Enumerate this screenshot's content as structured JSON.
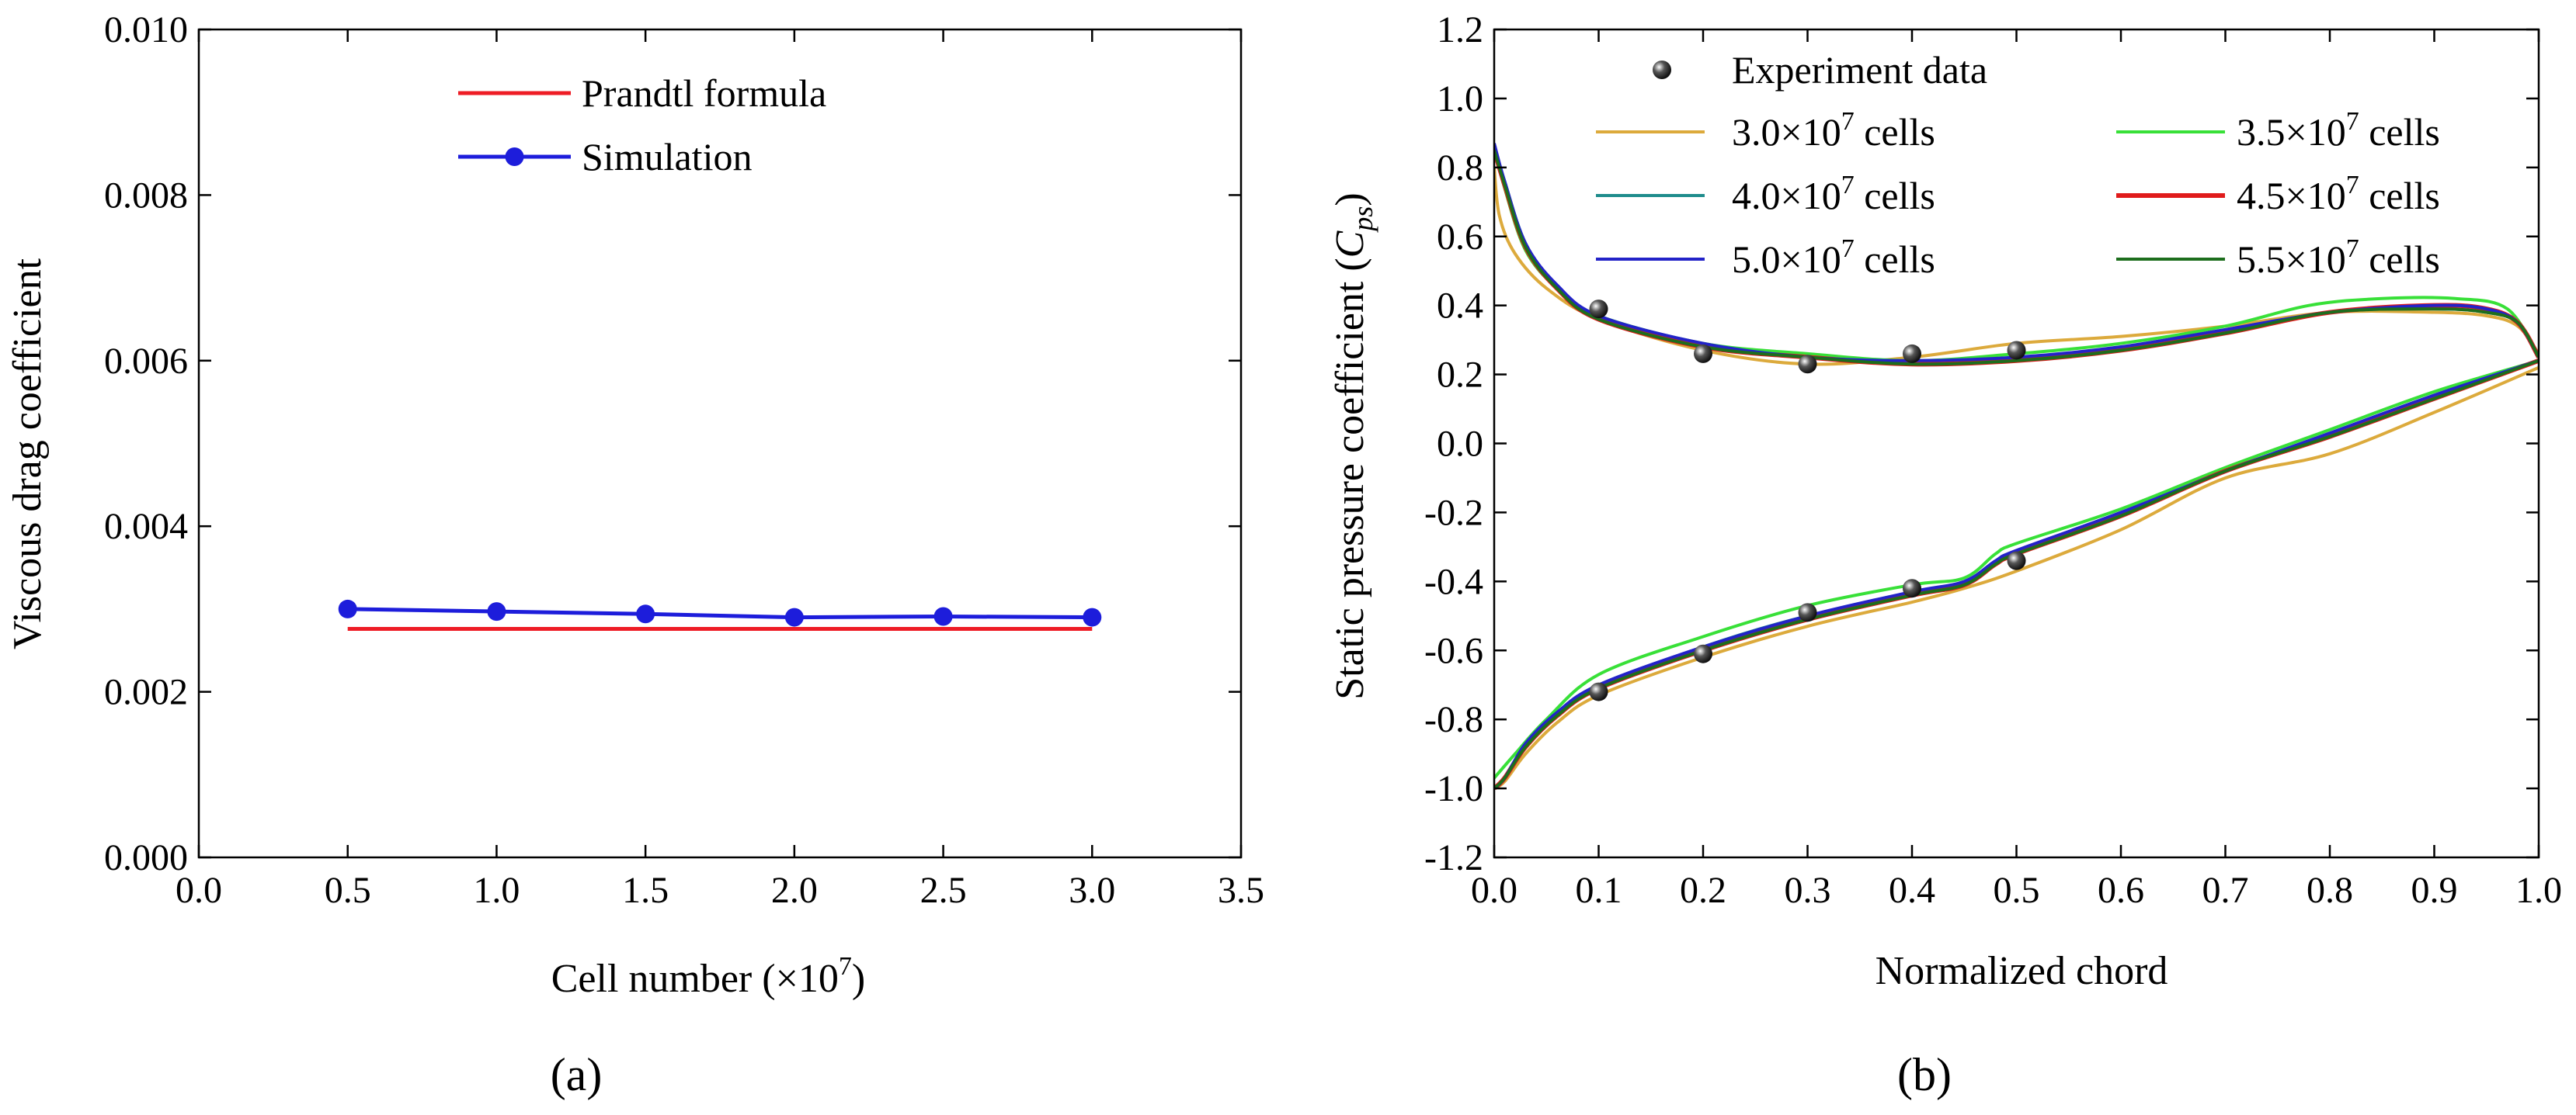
{
  "chart_data": [
    {
      "type": "line",
      "panel_label": "(a)",
      "xlabel": "Cell number (×10",
      "xlabel_sup": "7",
      "xlabel_end": ")",
      "ylabel": "Viscous drag coefficient",
      "xlim": [
        0.0,
        3.5
      ],
      "ylim": [
        0.0,
        0.01
      ],
      "x_ticks": [
        0.0,
        0.5,
        1.0,
        1.5,
        2.0,
        2.5,
        3.0,
        3.5
      ],
      "x_tick_labels": [
        "0.0",
        "0.5",
        "1.0",
        "1.5",
        "2.0",
        "2.5",
        "3.0",
        "3.5"
      ],
      "y_ticks": [
        0.0,
        0.002,
        0.004,
        0.006,
        0.008,
        0.01
      ],
      "y_tick_labels": [
        "0.000",
        "0.002",
        "0.004",
        "0.006",
        "0.008",
        "0.010"
      ],
      "grid": false,
      "legend_position": "top-center",
      "series": [
        {
          "name": "Prandtl formula",
          "color": "#ee1c25",
          "marker": "none",
          "x": [
            0.5,
            3.0
          ],
          "y": [
            0.00276,
            0.00276
          ]
        },
        {
          "name": "Simulation",
          "color": "#1d1ddb",
          "marker": "circle",
          "x": [
            0.5,
            1.0,
            1.5,
            2.0,
            2.5,
            3.0
          ],
          "y": [
            0.003,
            0.00297,
            0.00294,
            0.0029,
            0.00291,
            0.0029
          ]
        }
      ]
    },
    {
      "type": "line",
      "panel_label": "(b)",
      "xlabel": "Normalized chord",
      "ylabel": "Static pressure coefficient (",
      "ylabel_symbol": "C",
      "ylabel_sub": "ps",
      "ylabel_end": ")",
      "xlim": [
        0.0,
        1.0
      ],
      "ylim": [
        -1.2,
        1.2
      ],
      "x_ticks": [
        0.0,
        0.1,
        0.2,
        0.3,
        0.4,
        0.5,
        0.6,
        0.7,
        0.8,
        0.9,
        1.0
      ],
      "x_tick_labels": [
        "0.0",
        "0.1",
        "0.2",
        "0.3",
        "0.4",
        "0.5",
        "0.6",
        "0.7",
        "0.8",
        "0.9",
        "1.0"
      ],
      "y_ticks": [
        -1.2,
        -1.0,
        -0.8,
        -0.6,
        -0.4,
        -0.2,
        0.0,
        0.2,
        0.4,
        0.6,
        0.8,
        1.0,
        1.2
      ],
      "y_tick_labels": [
        "-1.2",
        "-1.0",
        "-0.8",
        "-0.6",
        "-0.4",
        "-0.2",
        "0.0",
        "0.2",
        "0.4",
        "0.6",
        "0.8",
        "1.0",
        "1.2"
      ],
      "grid": false,
      "legend_position": "top",
      "experiment": {
        "name": "Experiment data",
        "color": "#111111",
        "x": [
          0.1,
          0.2,
          0.3,
          0.4,
          0.5,
          0.1,
          0.2,
          0.3,
          0.4,
          0.5
        ],
        "y": [
          0.39,
          0.26,
          0.23,
          0.26,
          0.27,
          -0.72,
          -0.61,
          -0.49,
          -0.42,
          -0.34
        ]
      },
      "series": [
        {
          "name_base": "3.0×10",
          "name_exp": "7",
          "name_end": " cells",
          "color": "#dcaa3c",
          "upper_x": [
            0.0,
            0.005,
            0.02,
            0.05,
            0.1,
            0.2,
            0.3,
            0.4,
            0.5,
            0.6,
            0.7,
            0.8,
            0.9,
            0.95,
            0.98,
            1.0
          ],
          "upper_y": [
            0.8,
            0.66,
            0.55,
            0.45,
            0.36,
            0.27,
            0.23,
            0.25,
            0.29,
            0.31,
            0.34,
            0.38,
            0.38,
            0.37,
            0.34,
            0.26
          ],
          "lower_x": [
            0.0,
            0.01,
            0.03,
            0.06,
            0.1,
            0.2,
            0.3,
            0.4,
            0.45,
            0.5,
            0.6,
            0.7,
            0.8,
            0.9,
            1.0
          ],
          "lower_y": [
            -1.0,
            -0.98,
            -0.9,
            -0.81,
            -0.73,
            -0.62,
            -0.53,
            -0.46,
            -0.42,
            -0.37,
            -0.25,
            -0.1,
            -0.03,
            0.09,
            0.22
          ]
        },
        {
          "name_base": "3.5×10",
          "name_exp": "7",
          "name_end": " cells",
          "color": "#38e038",
          "upper_x": [
            0.0,
            0.01,
            0.03,
            0.06,
            0.1,
            0.2,
            0.3,
            0.4,
            0.5,
            0.6,
            0.7,
            0.78,
            0.85,
            0.92,
            0.97,
            1.0
          ],
          "upper_y": [
            0.86,
            0.74,
            0.56,
            0.45,
            0.37,
            0.29,
            0.26,
            0.24,
            0.26,
            0.29,
            0.34,
            0.4,
            0.42,
            0.42,
            0.39,
            0.25
          ],
          "lower_x": [
            0.0,
            0.02,
            0.05,
            0.1,
            0.2,
            0.3,
            0.4,
            0.45,
            0.48,
            0.5,
            0.6,
            0.7,
            0.8,
            0.9,
            1.0
          ],
          "lower_y": [
            -0.97,
            -0.9,
            -0.8,
            -0.67,
            -0.56,
            -0.47,
            -0.41,
            -0.39,
            -0.32,
            -0.29,
            -0.19,
            -0.07,
            0.04,
            0.15,
            0.24
          ]
        },
        {
          "name_base": "4.0×10",
          "name_exp": "7",
          "name_end": " cells",
          "color": "#1f8c8c",
          "upper_x": [
            0.0,
            0.01,
            0.03,
            0.06,
            0.1,
            0.2,
            0.3,
            0.4,
            0.5,
            0.6,
            0.7,
            0.8,
            0.9,
            0.95,
            0.98,
            1.0
          ],
          "upper_y": [
            0.86,
            0.76,
            0.58,
            0.45,
            0.36,
            0.28,
            0.25,
            0.23,
            0.24,
            0.27,
            0.32,
            0.38,
            0.39,
            0.38,
            0.35,
            0.25
          ],
          "lower_x": [
            0.0,
            0.01,
            0.03,
            0.06,
            0.1,
            0.2,
            0.3,
            0.4,
            0.45,
            0.48,
            0.5,
            0.6,
            0.7,
            0.8,
            0.9,
            1.0
          ],
          "lower_y": [
            -1.0,
            -0.97,
            -0.88,
            -0.79,
            -0.71,
            -0.59,
            -0.5,
            -0.44,
            -0.41,
            -0.35,
            -0.32,
            -0.21,
            -0.08,
            0.02,
            0.13,
            0.24
          ]
        },
        {
          "name_base": "4.5×10",
          "name_exp": "7",
          "name_end": " cells",
          "color": "#e01b1b",
          "upper_x": [
            0.0,
            0.01,
            0.03,
            0.06,
            0.1,
            0.2,
            0.3,
            0.4,
            0.5,
            0.6,
            0.7,
            0.8,
            0.9,
            0.95,
            0.98,
            1.0
          ],
          "upper_y": [
            0.85,
            0.75,
            0.57,
            0.45,
            0.36,
            0.28,
            0.25,
            0.23,
            0.24,
            0.27,
            0.32,
            0.38,
            0.4,
            0.39,
            0.35,
            0.25
          ],
          "lower_x": [
            0.0,
            0.01,
            0.03,
            0.06,
            0.1,
            0.2,
            0.3,
            0.4,
            0.45,
            0.48,
            0.5,
            0.6,
            0.7,
            0.8,
            0.9,
            1.0
          ],
          "lower_y": [
            -1.0,
            -0.97,
            -0.88,
            -0.79,
            -0.71,
            -0.6,
            -0.51,
            -0.44,
            -0.41,
            -0.35,
            -0.32,
            -0.21,
            -0.08,
            0.02,
            0.13,
            0.24
          ]
        },
        {
          "name_base": "5.0×10",
          "name_exp": "7",
          "name_end": " cells",
          "color": "#2323c8",
          "upper_x": [
            0.0,
            0.01,
            0.03,
            0.06,
            0.1,
            0.2,
            0.3,
            0.4,
            0.5,
            0.6,
            0.7,
            0.8,
            0.9,
            0.95,
            0.98,
            1.0
          ],
          "upper_y": [
            0.87,
            0.76,
            0.58,
            0.46,
            0.37,
            0.29,
            0.25,
            0.24,
            0.25,
            0.28,
            0.33,
            0.38,
            0.4,
            0.39,
            0.35,
            0.25
          ],
          "lower_x": [
            0.0,
            0.01,
            0.03,
            0.06,
            0.1,
            0.2,
            0.3,
            0.4,
            0.45,
            0.48,
            0.5,
            0.6,
            0.7,
            0.8,
            0.9,
            1.0
          ],
          "lower_y": [
            -1.0,
            -0.97,
            -0.87,
            -0.78,
            -0.7,
            -0.59,
            -0.5,
            -0.43,
            -0.4,
            -0.34,
            -0.31,
            -0.2,
            -0.08,
            0.03,
            0.14,
            0.24
          ]
        },
        {
          "name_base": "5.5×10",
          "name_exp": "7",
          "name_end": " cells",
          "color": "#1d6e1d",
          "upper_x": [
            0.0,
            0.01,
            0.03,
            0.06,
            0.1,
            0.2,
            0.3,
            0.4,
            0.5,
            0.6,
            0.7,
            0.8,
            0.9,
            0.95,
            0.98,
            1.0
          ],
          "upper_y": [
            0.85,
            0.75,
            0.57,
            0.45,
            0.36,
            0.28,
            0.25,
            0.23,
            0.24,
            0.27,
            0.32,
            0.38,
            0.39,
            0.38,
            0.35,
            0.25
          ],
          "lower_x": [
            0.0,
            0.01,
            0.03,
            0.06,
            0.1,
            0.2,
            0.3,
            0.4,
            0.45,
            0.48,
            0.5,
            0.6,
            0.7,
            0.8,
            0.9,
            1.0
          ],
          "lower_y": [
            -1.0,
            -0.97,
            -0.88,
            -0.79,
            -0.71,
            -0.6,
            -0.51,
            -0.44,
            -0.41,
            -0.35,
            -0.32,
            -0.21,
            -0.08,
            0.02,
            0.13,
            0.24
          ]
        }
      ]
    }
  ]
}
